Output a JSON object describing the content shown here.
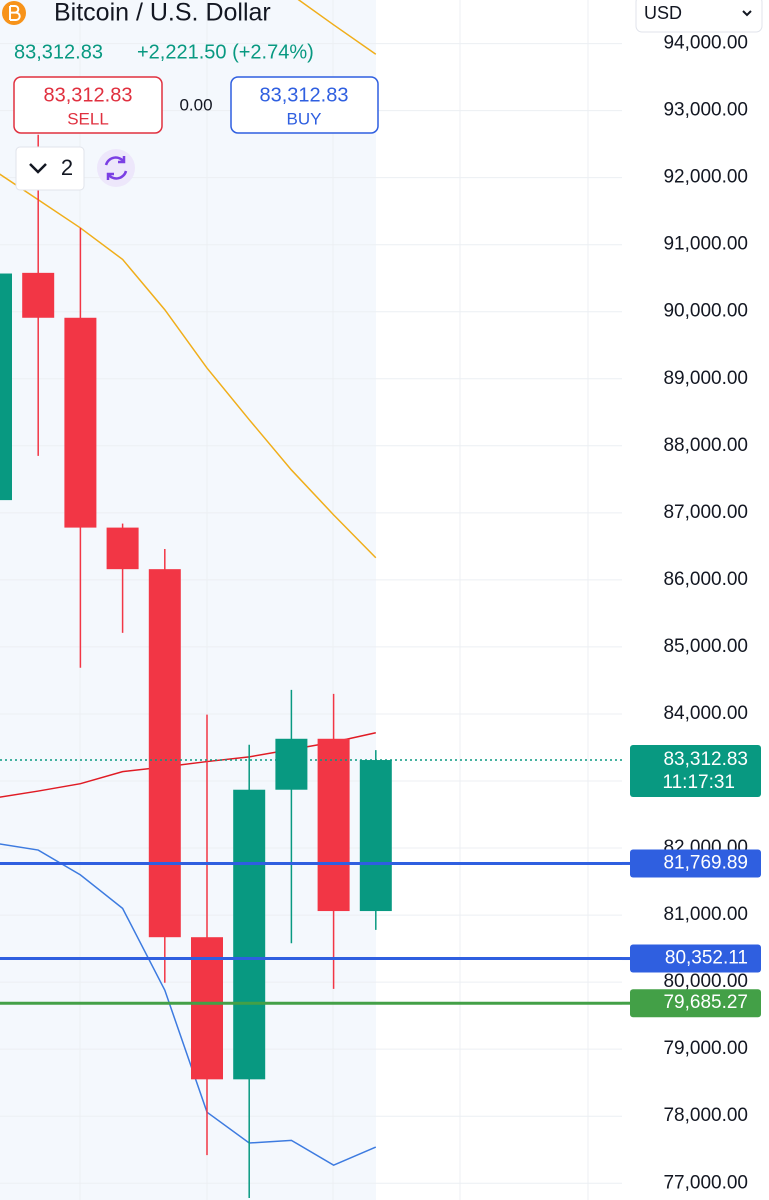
{
  "header": {
    "title": "Bitcoin / U.S. Dollar",
    "price": "83,312.83",
    "change": "+2,221.50 (+2.74%)"
  },
  "trade": {
    "sell": {
      "price": "83,312.83",
      "label": "SELL"
    },
    "spread": "0.00",
    "buy": {
      "price": "83,312.83",
      "label": "BUY"
    }
  },
  "toolbar": {
    "count": "2"
  },
  "currency": "USD",
  "chart_data": {
    "type": "candlestick",
    "ylim": [
      76750,
      94650
    ],
    "yticks": [
      {
        "value": 94000,
        "label": "94,000.00"
      },
      {
        "value": 93000,
        "label": "93,000.00"
      },
      {
        "value": 92000,
        "label": "92,000.00"
      },
      {
        "value": 91000,
        "label": "91,000.00"
      },
      {
        "value": 90000,
        "label": "90,000.00"
      },
      {
        "value": 89000,
        "label": "89,000.00"
      },
      {
        "value": 88000,
        "label": "88,000.00"
      },
      {
        "value": 87000,
        "label": "87,000.00"
      },
      {
        "value": 86000,
        "label": "86,000.00"
      },
      {
        "value": 85000,
        "label": "85,000.00"
      },
      {
        "value": 84000,
        "label": "84,000.00"
      },
      {
        "value": 83000,
        "label": "83,000.00"
      },
      {
        "value": 82000,
        "label": "82,000.00"
      },
      {
        "value": 81000,
        "label": "81,000.00"
      },
      {
        "value": 80000,
        "label": "80,000.00"
      },
      {
        "value": 79000,
        "label": "79,000.00"
      },
      {
        "value": 78000,
        "label": "78,000.00"
      },
      {
        "value": 77000,
        "label": "77,000.00"
      }
    ],
    "grid": true,
    "up_color": "#089981",
    "down_color": "#f23645",
    "open": [
      87190,
      90580,
      89910,
      86780,
      86160,
      80670,
      78550,
      82870,
      83630,
      81060
    ],
    "high": [
      90600,
      92640,
      91250,
      86840,
      86460,
      83990,
      83540,
      84360,
      84300,
      83460
    ],
    "low": [
      87190,
      87850,
      84690,
      85210,
      79990,
      77420,
      76780,
      80580,
      79900,
      80780
    ],
    "close": [
      90570,
      89910,
      86780,
      86160,
      80670,
      78550,
      82870,
      83630,
      81060,
      83312.83
    ],
    "lines": [
      {
        "color": "#f0ae1a",
        "values": [
          92090,
          91670,
          91250,
          90780,
          90030,
          89160,
          88390,
          87640,
          86970,
          86330
        ]
      },
      {
        "color": "#f0ae1a",
        "values": [
          null,
          null,
          null,
          null,
          null,
          null,
          null,
          94730,
          94280,
          93840
        ]
      },
      {
        "color": "#e01b24",
        "values": [
          82750,
          82850,
          82960,
          83140,
          83210,
          83290,
          83360,
          83470,
          83580,
          83720
        ]
      },
      {
        "color": "#3d7be0",
        "values": [
          82070,
          81970,
          81600,
          81100,
          79880,
          78060,
          77600,
          77640,
          77270,
          77540
        ]
      }
    ],
    "price_lines": [
      {
        "value": 81769.89,
        "label": "81,769.89",
        "color": "#2f5fe0"
      },
      {
        "value": 80352.11,
        "label": "80,352.11",
        "color": "#2f5fe0"
      },
      {
        "value": 79685.27,
        "label": "79,685.27",
        "color": "#43a047"
      }
    ],
    "current_price": {
      "value": 83312.83,
      "label": "83,312.83",
      "time": "11:17:31",
      "color": "#089981"
    }
  }
}
